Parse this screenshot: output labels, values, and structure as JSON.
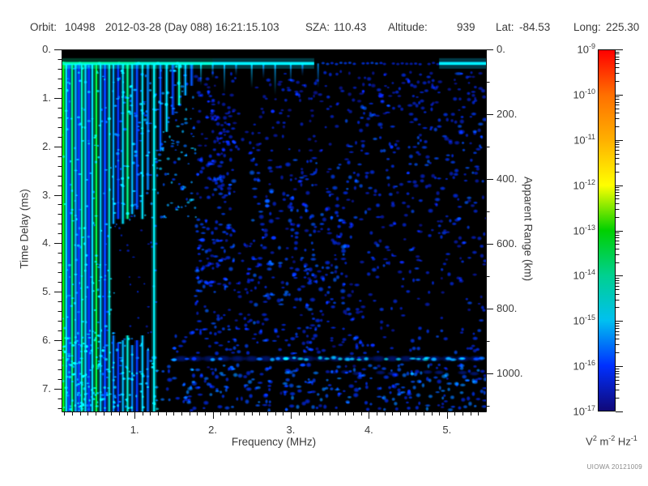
{
  "header": {
    "orbit_label": "Orbit:",
    "orbit_value": "10498",
    "datetime": "2012-03-28 (Day 088) 16:21:15.103",
    "sza_label": "SZA:",
    "sza_value": "110.43",
    "altitude_label": "Altitude:",
    "altitude_value": "939",
    "lat_label": "Lat:",
    "lat_value": "-84.53",
    "long_label": "Long:",
    "long_value": "225.30"
  },
  "credit": "UIOWA 20121009",
  "chart_data": {
    "type": "heatmap",
    "xlabel": "Frequency (MHz)",
    "ylabel_left": "Time Delay (ms)",
    "ylabel_right": "Apparent Range (km)",
    "xlim": [
      0.065,
      5.5
    ],
    "ylim": [
      0,
      7.47
    ],
    "right_lim_km": [
      0,
      1117
    ],
    "x_ticks": [
      {
        "v": 1,
        "label": "1."
      },
      {
        "v": 2,
        "label": "2."
      },
      {
        "v": 3,
        "label": "3."
      },
      {
        "v": 4,
        "label": "4."
      },
      {
        "v": 5,
        "label": "5."
      }
    ],
    "x_minor_step": 0.1,
    "y_ticks": [
      {
        "v": 0,
        "label": "0."
      },
      {
        "v": 1,
        "label": "1."
      },
      {
        "v": 2,
        "label": "2."
      },
      {
        "v": 3,
        "label": "3."
      },
      {
        "v": 4,
        "label": "4."
      },
      {
        "v": 5,
        "label": "5."
      },
      {
        "v": 6,
        "label": "6."
      },
      {
        "v": 7,
        "label": "7."
      }
    ],
    "y_minor_step": 0.2,
    "right_ticks": [
      {
        "v": 0,
        "label": "0."
      },
      {
        "v": 200,
        "label": "200."
      },
      {
        "v": 400,
        "label": "400."
      },
      {
        "v": 600,
        "label": "600."
      },
      {
        "v": 800,
        "label": "800."
      },
      {
        "v": 1000,
        "label": "1000."
      }
    ],
    "right_minor_step": 100,
    "colorbar": {
      "exp_base": "10",
      "tick_exponents": [
        "-9",
        "-10",
        "-11",
        "-12",
        "-13",
        "-14",
        "-15",
        "-16",
        "-17"
      ],
      "vmax_exp": -9,
      "vmin_exp": -17,
      "stops": [
        {
          "v": -9,
          "c": "#ff0000"
        },
        {
          "v": -10,
          "c": "#ff7000"
        },
        {
          "v": -11,
          "c": "#ffb000"
        },
        {
          "v": -12,
          "c": "#ffff00"
        },
        {
          "v": -13,
          "c": "#00d000"
        },
        {
          "v": -14,
          "c": "#00d090"
        },
        {
          "v": -15,
          "c": "#00c0f0"
        },
        {
          "v": -16,
          "c": "#0030ff"
        },
        {
          "v": -17,
          "c": "#100878"
        }
      ],
      "unit_parts": [
        {
          "base": "V",
          "exp": "2"
        },
        {
          "base": " m",
          "exp": "-2"
        },
        {
          "base": " Hz",
          "exp": "-1"
        }
      ]
    },
    "spectrogram": {
      "seed": 7,
      "background": "#000000",
      "top_band": {
        "t": 0.29,
        "segments": [
          [
            0.065,
            1.0,
            -14.0
          ],
          [
            1.0,
            2.0,
            -14.3
          ],
          [
            2.0,
            3.3,
            -14.8
          ],
          [
            3.3,
            4.2,
            -15.9
          ],
          [
            4.2,
            4.9,
            -16.3
          ],
          [
            4.9,
            5.5,
            -15.0
          ]
        ],
        "flecks": [
          [
            0.3,
            -13.3
          ],
          [
            0.55,
            -13.4
          ],
          [
            0.8,
            -13.2
          ],
          [
            1.05,
            -13.6
          ],
          [
            1.3,
            -13.5
          ],
          [
            1.55,
            -13.4
          ]
        ],
        "teeth": [
          [
            1.85,
            0.75,
            -15.0
          ],
          [
            2.0,
            0.6,
            -15.3
          ],
          [
            2.15,
            0.9,
            -15.2
          ],
          [
            2.3,
            0.55,
            -15.4
          ],
          [
            2.5,
            0.8,
            -15.1
          ],
          [
            2.65,
            0.6,
            -15.4
          ],
          [
            2.8,
            0.95,
            -15.2
          ],
          [
            3.0,
            0.7,
            -15.3
          ],
          [
            3.15,
            0.55,
            -15.5
          ],
          [
            3.35,
            0.8,
            -15.4
          ]
        ]
      },
      "stripes": [
        [
          0.085,
          0.26,
          7.47,
          -13.0,
          2.6
        ],
        [
          0.125,
          0.3,
          7.47,
          -15.0,
          1.8
        ],
        [
          0.16,
          0.3,
          7.47,
          -16.0,
          2.4
        ],
        [
          0.2,
          0.3,
          7.47,
          -13.6,
          2.0
        ],
        [
          0.245,
          0.3,
          7.47,
          -15.2,
          1.8
        ],
        [
          0.285,
          0.3,
          7.47,
          -16.1,
          2.6
        ],
        [
          0.325,
          0.3,
          7.47,
          -13.9,
          2.0
        ],
        [
          0.37,
          0.3,
          7.47,
          -14.9,
          1.8
        ],
        [
          0.415,
          0.3,
          7.47,
          -16.0,
          2.6
        ],
        [
          0.46,
          0.3,
          7.47,
          -14.6,
          1.8
        ],
        [
          0.51,
          0.3,
          7.47,
          -13.4,
          2.2
        ],
        [
          0.565,
          0.3,
          7.47,
          -15.1,
          1.8
        ],
        [
          0.62,
          0.3,
          7.47,
          -15.9,
          2.6
        ],
        [
          0.675,
          0.3,
          7.47,
          -14.4,
          1.8
        ],
        [
          0.73,
          0.3,
          3.6,
          -15.3,
          1.8
        ],
        [
          0.79,
          0.3,
          3.5,
          -16.0,
          2.4
        ],
        [
          0.85,
          0.3,
          3.6,
          -14.9,
          1.8
        ],
        [
          0.91,
          0.3,
          3.5,
          -13.8,
          2.2
        ],
        [
          0.97,
          0.3,
          3.4,
          -15.2,
          1.8
        ],
        [
          1.03,
          0.3,
          3.3,
          -15.9,
          2.4
        ],
        [
          1.1,
          0.3,
          3.5,
          -14.8,
          1.8
        ],
        [
          1.17,
          0.3,
          2.9,
          -15.5,
          1.8
        ],
        [
          1.25,
          0.3,
          7.47,
          -14.6,
          2.4
        ],
        [
          1.33,
          0.3,
          2.1,
          -15.8,
          1.8
        ],
        [
          1.41,
          0.3,
          1.7,
          -15.0,
          1.8
        ],
        [
          1.49,
          0.3,
          1.35,
          -15.9,
          1.8
        ],
        [
          1.57,
          0.3,
          1.15,
          -14.2,
          2.0
        ],
        [
          1.65,
          0.3,
          0.95,
          -15.3,
          1.8
        ],
        [
          1.73,
          0.3,
          0.75,
          -15.8,
          1.8
        ],
        [
          0.73,
          5.9,
          7.47,
          -15.6,
          1.8
        ],
        [
          0.79,
          6.05,
          7.47,
          -16.0,
          2.2
        ],
        [
          0.85,
          6.0,
          7.47,
          -15.2,
          1.8
        ],
        [
          0.91,
          5.9,
          7.47,
          -14.4,
          2.0
        ],
        [
          0.97,
          6.1,
          7.47,
          -15.5,
          1.8
        ],
        [
          1.03,
          6.0,
          7.47,
          -16.0,
          2.2
        ],
        [
          1.1,
          5.9,
          7.47,
          -15.1,
          1.8
        ],
        [
          1.17,
          6.2,
          7.47,
          -15.7,
          1.8
        ]
      ],
      "surface_band": {
        "t": 6.38,
        "segments": [
          [
            1.15,
            1.5,
            -15.4
          ],
          [
            1.5,
            2.0,
            -15.8
          ],
          [
            2.0,
            2.95,
            -15.3
          ],
          [
            2.95,
            4.75,
            -14.4
          ],
          [
            4.75,
            5.2,
            -15.0
          ],
          [
            5.2,
            5.5,
            -15.6
          ]
        ],
        "halo": [
          1.6,
          5.5,
          -16.1
        ],
        "sub_band": {
          "t": 6.67,
          "f0": 3.4,
          "f1": 5.5,
          "v": -16.2
        }
      },
      "speckle_regions": [
        [
          1.78,
          2.3,
          0.45,
          2.2,
          70,
          -16.7,
          -16.1,
          2,
          3.8
        ],
        [
          2.55,
          5.5,
          0.45,
          1.15,
          120,
          -16.7,
          -16.0,
          2,
          3.8
        ],
        [
          1.78,
          2.28,
          2.2,
          5.8,
          150,
          -16.5,
          -15.7,
          2,
          4.2
        ],
        [
          2.5,
          3.7,
          2.2,
          5.8,
          260,
          -16.5,
          -15.6,
          2,
          4.4
        ],
        [
          2.28,
          2.5,
          4.0,
          5.8,
          30,
          -16.6,
          -16.0,
          2,
          3.5
        ],
        [
          3.7,
          5.5,
          1.15,
          3.4,
          190,
          -16.5,
          -15.7,
          2,
          4.2
        ],
        [
          3.7,
          5.5,
          3.4,
          5.75,
          130,
          -16.6,
          -15.8,
          2,
          4
        ],
        [
          1.5,
          5.5,
          5.75,
          6.28,
          110,
          -16.4,
          -15.8,
          2,
          4
        ],
        [
          1.35,
          5.5,
          6.5,
          7.45,
          280,
          -16.3,
          -15.4,
          2,
          4.4
        ],
        [
          0.78,
          1.8,
          0.35,
          3.55,
          210,
          -16.1,
          -14.9,
          1.5,
          3.2
        ],
        [
          0.065,
          0.78,
          0.35,
          7.45,
          230,
          -16.0,
          -14.7,
          1.3,
          2.8
        ],
        [
          0.78,
          1.28,
          3.6,
          5.85,
          26,
          -16.6,
          -16.1,
          1.5,
          2.5
        ],
        [
          0.065,
          1.3,
          5.85,
          7.45,
          170,
          -15.8,
          -14.6,
          1.5,
          3
        ],
        [
          1.78,
          5.5,
          0.4,
          7.45,
          110,
          -16.8,
          -16.3,
          2,
          3.4
        ],
        [
          2.0,
          3.6,
          1.15,
          2.2,
          60,
          -16.7,
          -16.1,
          2,
          3.6
        ]
      ],
      "extra_blobs": [
        [
          5.15,
          0.5,
          -15.8,
          6,
          2.5
        ]
      ]
    }
  }
}
